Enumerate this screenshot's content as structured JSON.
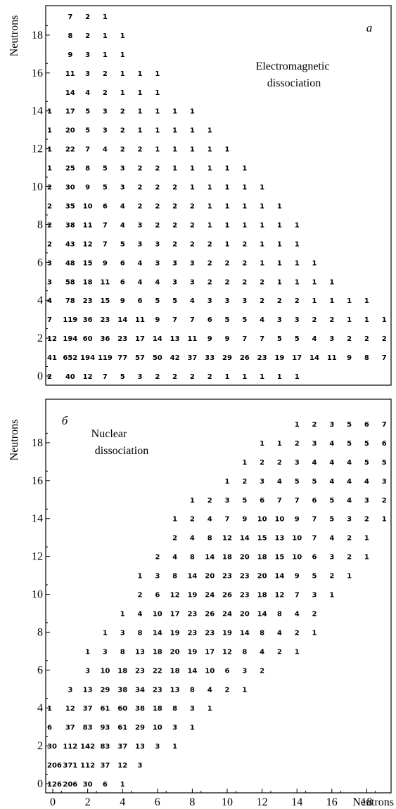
{
  "chart_data": [
    {
      "type": "table",
      "panel_label": "a",
      "annotation": [
        "Electromagnetic",
        "dissociation"
      ],
      "xlabel": "",
      "ylabel": "Neutrons",
      "xlim": [
        -0.5,
        19.5
      ],
      "ylim": [
        -0.3,
        19.4
      ],
      "xticks": [],
      "yticks": [
        0,
        2,
        4,
        6,
        8,
        10,
        12,
        14,
        16,
        18
      ],
      "rows": [
        {
          "y": 19,
          "x0": 1,
          "values": [
            7,
            2,
            1
          ]
        },
        {
          "y": 18,
          "x0": 1,
          "values": [
            8,
            2,
            1,
            1
          ]
        },
        {
          "y": 17,
          "x0": 1,
          "values": [
            9,
            3,
            1,
            1
          ]
        },
        {
          "y": 16,
          "x0": 1,
          "values": [
            11,
            3,
            2,
            1,
            1,
            1
          ]
        },
        {
          "y": 15,
          "x0": 1,
          "values": [
            14,
            4,
            2,
            1,
            1,
            1
          ]
        },
        {
          "y": 14,
          "x0": 0,
          "values": [
            1,
            17,
            5,
            3,
            2,
            1,
            1,
            1,
            1
          ]
        },
        {
          "y": 13,
          "x0": 0,
          "values": [
            1,
            20,
            5,
            3,
            2,
            1,
            1,
            1,
            1,
            1
          ]
        },
        {
          "y": 12,
          "x0": 0,
          "values": [
            1,
            22,
            7,
            4,
            2,
            2,
            1,
            1,
            1,
            1,
            1
          ]
        },
        {
          "y": 11,
          "x0": 0,
          "values": [
            1,
            25,
            8,
            5,
            3,
            2,
            2,
            1,
            1,
            1,
            1,
            1
          ]
        },
        {
          "y": 10,
          "x0": 0,
          "values": [
            2,
            30,
            9,
            5,
            3,
            2,
            2,
            2,
            1,
            1,
            1,
            1,
            1
          ]
        },
        {
          "y": 9,
          "x0": 0,
          "values": [
            2,
            35,
            10,
            6,
            4,
            2,
            2,
            2,
            2,
            1,
            1,
            1,
            1,
            1
          ]
        },
        {
          "y": 8,
          "x0": 0,
          "values": [
            2,
            38,
            11,
            7,
            4,
            3,
            2,
            2,
            2,
            1,
            1,
            1,
            1,
            1,
            1
          ]
        },
        {
          "y": 7,
          "x0": 0,
          "values": [
            2,
            43,
            12,
            7,
            5,
            3,
            3,
            2,
            2,
            2,
            1,
            2,
            1,
            1,
            1
          ]
        },
        {
          "y": 6,
          "x0": 0,
          "values": [
            3,
            48,
            15,
            9,
            6,
            4,
            3,
            3,
            3,
            2,
            2,
            2,
            1,
            1,
            1,
            1
          ]
        },
        {
          "y": 5,
          "x0": 0,
          "values": [
            3,
            58,
            18,
            11,
            6,
            4,
            4,
            3,
            3,
            2,
            2,
            2,
            2,
            1,
            1,
            1,
            1
          ]
        },
        {
          "y": 4,
          "x0": 0,
          "values": [
            4,
            78,
            23,
            15,
            9,
            6,
            5,
            5,
            4,
            3,
            3,
            3,
            2,
            2,
            2,
            1,
            1,
            1,
            1
          ]
        },
        {
          "y": 3,
          "x0": 0,
          "values": [
            7,
            119,
            36,
            23,
            14,
            11,
            9,
            7,
            7,
            6,
            5,
            5,
            4,
            3,
            3,
            2,
            2,
            1,
            1,
            1,
            1
          ]
        },
        {
          "y": 2,
          "x0": 0,
          "values": [
            12,
            194,
            60,
            36,
            23,
            17,
            14,
            13,
            11,
            9,
            9,
            7,
            7,
            5,
            5,
            4,
            3,
            2,
            2,
            2
          ]
        },
        {
          "y": 1,
          "x0": 0,
          "values": [
            41,
            652,
            194,
            119,
            77,
            57,
            50,
            42,
            37,
            33,
            29,
            26,
            23,
            19,
            17,
            14,
            11,
            9,
            8,
            7
          ]
        },
        {
          "y": 0,
          "x0": 0,
          "values": [
            2,
            40,
            12,
            7,
            5,
            3,
            2,
            2,
            2,
            2,
            1,
            1,
            1,
            1,
            1
          ]
        }
      ]
    },
    {
      "type": "table",
      "panel_label": "б",
      "annotation": [
        "Nuclear",
        "dissociation"
      ],
      "xlabel": "Neutrons",
      "ylabel": "Neutrons",
      "xlim": [
        -0.5,
        19.5
      ],
      "ylim": [
        -0.3,
        19.4
      ],
      "xticks": [
        0,
        2,
        4,
        6,
        8,
        10,
        12,
        14,
        16,
        18
      ],
      "yticks": [
        0,
        2,
        4,
        6,
        8,
        10,
        12,
        14,
        16,
        18
      ],
      "rows": [
        {
          "y": 19,
          "x0": 14,
          "values": [
            1,
            2,
            3,
            5,
            6,
            7
          ]
        },
        {
          "y": 18,
          "x0": 12,
          "values": [
            1,
            1,
            2,
            3,
            4,
            5,
            5,
            6
          ]
        },
        {
          "y": 17,
          "x0": 11,
          "values": [
            1,
            2,
            2,
            3,
            4,
            4,
            4,
            5,
            5
          ]
        },
        {
          "y": 16,
          "x0": 10,
          "values": [
            1,
            2,
            3,
            4,
            5,
            5,
            4,
            4,
            4,
            3
          ]
        },
        {
          "y": 15,
          "x0": 8,
          "values": [
            1,
            2,
            3,
            5,
            6,
            7,
            7,
            6,
            5,
            4,
            3,
            2
          ]
        },
        {
          "y": 14,
          "x0": 7,
          "values": [
            1,
            2,
            4,
            7,
            9,
            10,
            10,
            9,
            7,
            5,
            3,
            2,
            1
          ]
        },
        {
          "y": 13,
          "x0": 7,
          "values": [
            2,
            4,
            8,
            12,
            14,
            15,
            13,
            10,
            7,
            4,
            2,
            1
          ]
        },
        {
          "y": 12,
          "x0": 6,
          "values": [
            2,
            4,
            8,
            14,
            18,
            20,
            18,
            15,
            10,
            6,
            3,
            2,
            1
          ]
        },
        {
          "y": 11,
          "x0": 5,
          "values": [
            1,
            3,
            8,
            14,
            20,
            23,
            23,
            20,
            14,
            9,
            5,
            2,
            1
          ]
        },
        {
          "y": 10,
          "x0": 5,
          "values": [
            2,
            6,
            12,
            19,
            24,
            26,
            23,
            18,
            12,
            7,
            3,
            1
          ]
        },
        {
          "y": 9,
          "x0": 4,
          "values": [
            1,
            4,
            10,
            17,
            23,
            26,
            24,
            20,
            14,
            8,
            4,
            2
          ]
        },
        {
          "y": 8,
          "x0": 3,
          "values": [
            1,
            3,
            8,
            14,
            19,
            23,
            23,
            19,
            14,
            8,
            4,
            2,
            1
          ]
        },
        {
          "y": 7,
          "x0": 2,
          "values": [
            1,
            3,
            8,
            13,
            18,
            20,
            19,
            17,
            12,
            8,
            4,
            2,
            1
          ]
        },
        {
          "y": 6,
          "x0": 2,
          "values": [
            3,
            10,
            18,
            23,
            22,
            18,
            14,
            10,
            6,
            3,
            2
          ]
        },
        {
          "y": 5,
          "x0": 1,
          "values": [
            3,
            13,
            29,
            38,
            34,
            23,
            13,
            8,
            4,
            2,
            1
          ]
        },
        {
          "y": 4,
          "x0": 0,
          "values": [
            1,
            12,
            37,
            61,
            60,
            38,
            18,
            8,
            3,
            1
          ]
        },
        {
          "y": 3,
          "x0": 0,
          "values": [
            6,
            37,
            83,
            93,
            61,
            29,
            10,
            3,
            1
          ]
        },
        {
          "y": 2,
          "x0": 0,
          "values": [
            30,
            112,
            142,
            83,
            37,
            13,
            3,
            1
          ]
        },
        {
          "y": 1,
          "x0": 0,
          "values": [
            206,
            371,
            112,
            37,
            12,
            3
          ]
        },
        {
          "y": 0,
          "x0": 0,
          "values": [
            126,
            206,
            30,
            6,
            1
          ]
        }
      ]
    }
  ]
}
